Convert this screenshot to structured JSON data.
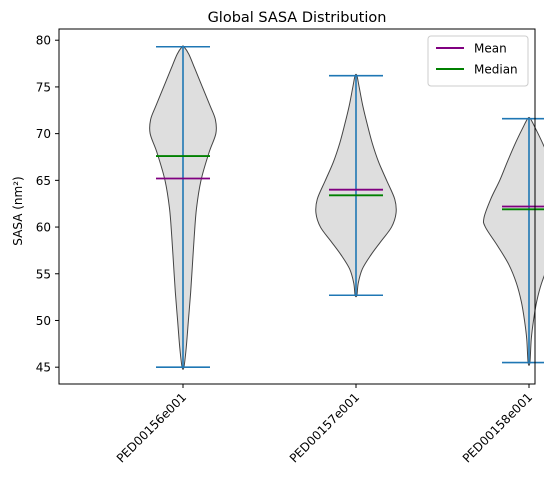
{
  "chart_data": {
    "type": "violin",
    "title": "Global SASA Distribution",
    "xlabel": "",
    "ylabel": "SASA (nm²)",
    "ylim": [
      43.2,
      81.2
    ],
    "yticks": [
      45,
      50,
      55,
      60,
      65,
      70,
      75,
      80
    ],
    "categories": [
      "PED00156e001",
      "PED00157e001",
      "PED00158e001"
    ],
    "legend": {
      "placement": "top-right",
      "entries": [
        {
          "label": "Mean",
          "color": "#800080"
        },
        {
          "label": "Median",
          "color": "#008000"
        }
      ]
    },
    "colors": {
      "violin_fill": "#dedede",
      "violin_edge": "#444444",
      "whisker": "#1f77b4",
      "mean": "#800080",
      "median": "#008000"
    },
    "series": [
      {
        "category": "PED00156e001",
        "min": 45.0,
        "max": 79.3,
        "mean": 65.2,
        "median": 67.6,
        "density_profile": [
          [
            45.0,
            0.02
          ],
          [
            47.0,
            0.07
          ],
          [
            50.0,
            0.12
          ],
          [
            53.0,
            0.17
          ],
          [
            56.0,
            0.21
          ],
          [
            59.0,
            0.25
          ],
          [
            62.0,
            0.3
          ],
          [
            65.0,
            0.4
          ],
          [
            68.0,
            0.58
          ],
          [
            70.0,
            0.73
          ],
          [
            71.5,
            0.72
          ],
          [
            73.0,
            0.6
          ],
          [
            75.0,
            0.43
          ],
          [
            77.0,
            0.26
          ],
          [
            78.5,
            0.13
          ],
          [
            79.3,
            0.02
          ]
        ]
      },
      {
        "category": "PED00157e001",
        "min": 52.7,
        "max": 76.2,
        "mean": 64.0,
        "median": 63.4,
        "density_profile": [
          [
            52.7,
            0.02
          ],
          [
            54.0,
            0.05
          ],
          [
            55.5,
            0.14
          ],
          [
            57.0,
            0.33
          ],
          [
            58.5,
            0.56
          ],
          [
            60.0,
            0.79
          ],
          [
            61.5,
            0.89
          ],
          [
            63.0,
            0.86
          ],
          [
            65.0,
            0.68
          ],
          [
            67.0,
            0.5
          ],
          [
            69.0,
            0.36
          ],
          [
            71.0,
            0.25
          ],
          [
            73.0,
            0.15
          ],
          [
            75.0,
            0.07
          ],
          [
            76.2,
            0.02
          ]
        ]
      },
      {
        "category": "PED00158e001",
        "min": 45.5,
        "max": 71.6,
        "mean": 62.2,
        "median": 61.9,
        "density_profile": [
          [
            45.5,
            0.02
          ],
          [
            48.0,
            0.05
          ],
          [
            50.0,
            0.1
          ],
          [
            52.0,
            0.17
          ],
          [
            54.0,
            0.28
          ],
          [
            56.0,
            0.45
          ],
          [
            58.0,
            0.7
          ],
          [
            60.0,
            0.97
          ],
          [
            61.0,
            1.0
          ],
          [
            63.0,
            0.85
          ],
          [
            65.0,
            0.65
          ],
          [
            67.0,
            0.48
          ],
          [
            69.0,
            0.3
          ],
          [
            70.5,
            0.15
          ],
          [
            71.6,
            0.03
          ]
        ]
      }
    ]
  }
}
